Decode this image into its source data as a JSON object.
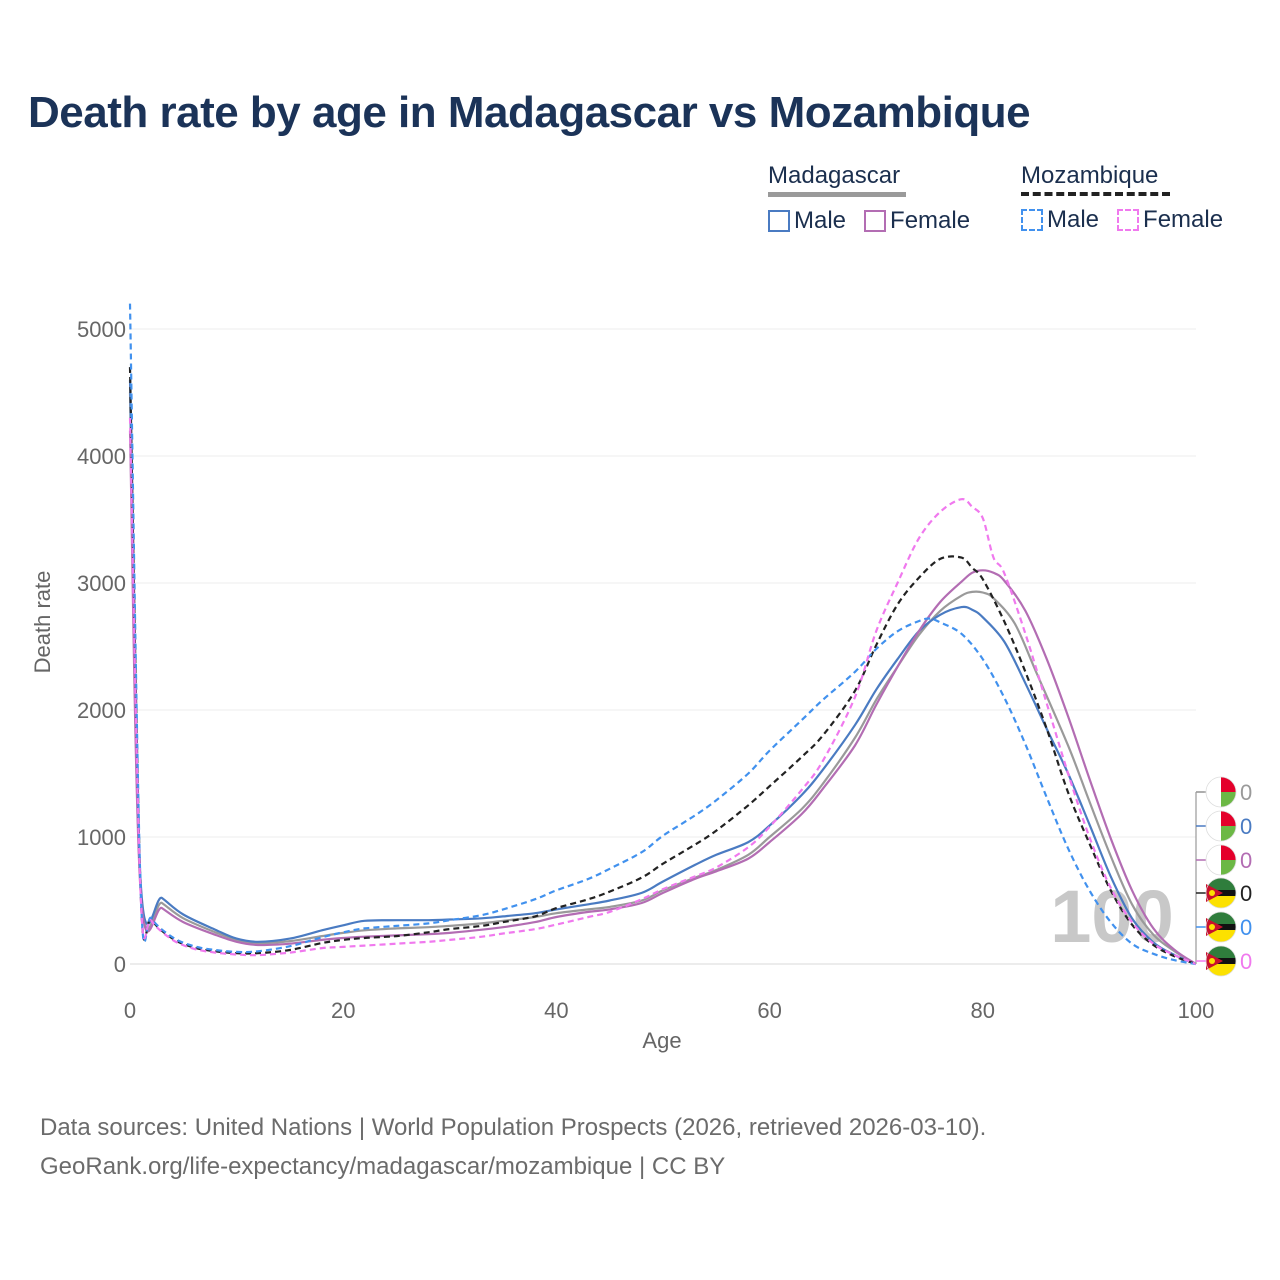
{
  "header": {
    "title": "Death rate by age in Madagascar vs Mozambique"
  },
  "legend": {
    "groups": [
      {
        "name": "Madagascar",
        "line_color": "#9a9a9a",
        "items": [
          {
            "label": "Male",
            "color": "#4a7bc2"
          },
          {
            "label": "Female",
            "color": "#b36db3"
          }
        ]
      },
      {
        "name": "Mozambique",
        "line_color": "#222222",
        "items": [
          {
            "label": "Male",
            "color": "#4191ee"
          },
          {
            "label": "Female",
            "color": "#f079ee"
          }
        ]
      }
    ]
  },
  "chart_data": {
    "type": "line",
    "title": "Death rate by age in Madagascar vs Mozambique",
    "xlabel": "Age",
    "ylabel": "Death rate",
    "xlim": [
      0,
      100
    ],
    "ylim": [
      0,
      5150
    ],
    "xticks": [
      0,
      20,
      40,
      60,
      80,
      100
    ],
    "yticks": [
      0,
      1000,
      2000,
      3000,
      4000,
      5000
    ],
    "watermark": "100",
    "series": [
      {
        "name": "Madagascar (both)",
        "country": "Madagascar",
        "sex": "Both",
        "color": "#9a9a9a",
        "dashed": false,
        "end_label": "0",
        "points": [
          [
            0,
            4500
          ],
          [
            1,
            600
          ],
          [
            3,
            480
          ],
          [
            5,
            360
          ],
          [
            8,
            250
          ],
          [
            10,
            190
          ],
          [
            12,
            165
          ],
          [
            15,
            180
          ],
          [
            18,
            220
          ],
          [
            20,
            245
          ],
          [
            22,
            265
          ],
          [
            25,
            280
          ],
          [
            28,
            290
          ],
          [
            30,
            300
          ],
          [
            33,
            320
          ],
          [
            35,
            340
          ],
          [
            38,
            370
          ],
          [
            40,
            400
          ],
          [
            43,
            430
          ],
          [
            45,
            450
          ],
          [
            48,
            500
          ],
          [
            50,
            580
          ],
          [
            53,
            680
          ],
          [
            55,
            740
          ],
          [
            58,
            860
          ],
          [
            60,
            1000
          ],
          [
            63,
            1220
          ],
          [
            65,
            1420
          ],
          [
            68,
            1780
          ],
          [
            70,
            2080
          ],
          [
            72,
            2340
          ],
          [
            74,
            2590
          ],
          [
            76,
            2780
          ],
          [
            78,
            2900
          ],
          [
            79,
            2930
          ],
          [
            80,
            2925
          ],
          [
            81,
            2880
          ],
          [
            83,
            2680
          ],
          [
            85,
            2300
          ],
          [
            88,
            1720
          ],
          [
            90,
            1280
          ],
          [
            92,
            850
          ],
          [
            94,
            470
          ],
          [
            96,
            230
          ],
          [
            98,
            100
          ],
          [
            100,
            0
          ]
        ]
      },
      {
        "name": "Madagascar Male",
        "country": "Madagascar",
        "sex": "Male",
        "color": "#4a7bc2",
        "dashed": false,
        "end_label": "0",
        "points": [
          [
            0,
            4600
          ],
          [
            1,
            640
          ],
          [
            3,
            520
          ],
          [
            5,
            390
          ],
          [
            8,
            270
          ],
          [
            10,
            200
          ],
          [
            12,
            175
          ],
          [
            15,
            200
          ],
          [
            18,
            265
          ],
          [
            20,
            305
          ],
          [
            22,
            340
          ],
          [
            25,
            345
          ],
          [
            28,
            345
          ],
          [
            30,
            350
          ],
          [
            33,
            360
          ],
          [
            35,
            375
          ],
          [
            38,
            400
          ],
          [
            40,
            430
          ],
          [
            43,
            470
          ],
          [
            45,
            500
          ],
          [
            48,
            560
          ],
          [
            50,
            650
          ],
          [
            53,
            780
          ],
          [
            55,
            860
          ],
          [
            58,
            960
          ],
          [
            60,
            1090
          ],
          [
            63,
            1330
          ],
          [
            65,
            1530
          ],
          [
            68,
            1880
          ],
          [
            70,
            2160
          ],
          [
            72,
            2400
          ],
          [
            74,
            2620
          ],
          [
            76,
            2750
          ],
          [
            78,
            2810
          ],
          [
            79,
            2790
          ],
          [
            80,
            2730
          ],
          [
            82,
            2540
          ],
          [
            84,
            2210
          ],
          [
            86,
            1850
          ],
          [
            88,
            1500
          ],
          [
            90,
            1100
          ],
          [
            92,
            690
          ],
          [
            94,
            360
          ],
          [
            96,
            170
          ],
          [
            98,
            70
          ],
          [
            100,
            0
          ]
        ]
      },
      {
        "name": "Madagascar Female",
        "country": "Madagascar",
        "sex": "Female",
        "color": "#b36db3",
        "dashed": false,
        "end_label": "0",
        "points": [
          [
            0,
            4200
          ],
          [
            1,
            560
          ],
          [
            3,
            440
          ],
          [
            5,
            330
          ],
          [
            8,
            230
          ],
          [
            10,
            175
          ],
          [
            12,
            150
          ],
          [
            15,
            160
          ],
          [
            18,
            190
          ],
          [
            20,
            205
          ],
          [
            22,
            215
          ],
          [
            25,
            225
          ],
          [
            28,
            235
          ],
          [
            30,
            245
          ],
          [
            33,
            270
          ],
          [
            35,
            290
          ],
          [
            38,
            330
          ],
          [
            40,
            370
          ],
          [
            43,
            410
          ],
          [
            45,
            430
          ],
          [
            48,
            480
          ],
          [
            50,
            560
          ],
          [
            53,
            670
          ],
          [
            55,
            730
          ],
          [
            58,
            830
          ],
          [
            60,
            960
          ],
          [
            63,
            1180
          ],
          [
            65,
            1380
          ],
          [
            68,
            1720
          ],
          [
            70,
            2040
          ],
          [
            72,
            2340
          ],
          [
            74,
            2620
          ],
          [
            76,
            2850
          ],
          [
            78,
            3010
          ],
          [
            79,
            3080
          ],
          [
            80,
            3100
          ],
          [
            81,
            3080
          ],
          [
            82,
            3020
          ],
          [
            84,
            2780
          ],
          [
            86,
            2400
          ],
          [
            88,
            1950
          ],
          [
            90,
            1460
          ],
          [
            92,
            990
          ],
          [
            94,
            580
          ],
          [
            96,
            280
          ],
          [
            98,
            110
          ],
          [
            100,
            0
          ]
        ]
      },
      {
        "name": "Mozambique (both)",
        "country": "Mozambique",
        "sex": "Both",
        "color": "#222222",
        "dashed": true,
        "end_label": "0",
        "points": [
          [
            0,
            4700
          ],
          [
            1,
            560
          ],
          [
            2,
            350
          ],
          [
            4,
            200
          ],
          [
            6,
            130
          ],
          [
            8,
            100
          ],
          [
            10,
            85
          ],
          [
            12,
            85
          ],
          [
            15,
            110
          ],
          [
            18,
            165
          ],
          [
            20,
            190
          ],
          [
            22,
            205
          ],
          [
            25,
            220
          ],
          [
            28,
            250
          ],
          [
            30,
            275
          ],
          [
            33,
            300
          ],
          [
            35,
            330
          ],
          [
            38,
            375
          ],
          [
            40,
            440
          ],
          [
            43,
            510
          ],
          [
            45,
            570
          ],
          [
            48,
            680
          ],
          [
            50,
            790
          ],
          [
            53,
            940
          ],
          [
            55,
            1050
          ],
          [
            58,
            1250
          ],
          [
            60,
            1400
          ],
          [
            63,
            1630
          ],
          [
            65,
            1800
          ],
          [
            68,
            2150
          ],
          [
            70,
            2510
          ],
          [
            72,
            2830
          ],
          [
            74,
            3040
          ],
          [
            76,
            3190
          ],
          [
            78,
            3200
          ],
          [
            79,
            3120
          ],
          [
            80,
            3030
          ],
          [
            82,
            2700
          ],
          [
            84,
            2300
          ],
          [
            86,
            1850
          ],
          [
            88,
            1350
          ],
          [
            90,
            950
          ],
          [
            92,
            580
          ],
          [
            94,
            310
          ],
          [
            96,
            150
          ],
          [
            98,
            60
          ],
          [
            100,
            0
          ]
        ]
      },
      {
        "name": "Mozambique Male",
        "country": "Mozambique",
        "sex": "Male",
        "color": "#4191ee",
        "dashed": true,
        "end_label": "0",
        "points": [
          [
            0,
            5200
          ],
          [
            1,
            580
          ],
          [
            2,
            360
          ],
          [
            4,
            210
          ],
          [
            6,
            140
          ],
          [
            8,
            110
          ],
          [
            10,
            95
          ],
          [
            12,
            100
          ],
          [
            15,
            140
          ],
          [
            18,
            210
          ],
          [
            20,
            250
          ],
          [
            22,
            280
          ],
          [
            25,
            300
          ],
          [
            28,
            320
          ],
          [
            30,
            345
          ],
          [
            33,
            385
          ],
          [
            35,
            430
          ],
          [
            38,
            510
          ],
          [
            40,
            580
          ],
          [
            43,
            670
          ],
          [
            45,
            750
          ],
          [
            48,
            880
          ],
          [
            50,
            1010
          ],
          [
            53,
            1170
          ],
          [
            55,
            1290
          ],
          [
            58,
            1500
          ],
          [
            60,
            1680
          ],
          [
            63,
            1920
          ],
          [
            65,
            2080
          ],
          [
            68,
            2300
          ],
          [
            70,
            2480
          ],
          [
            72,
            2620
          ],
          [
            74,
            2700
          ],
          [
            75,
            2720
          ],
          [
            76,
            2690
          ],
          [
            78,
            2600
          ],
          [
            80,
            2400
          ],
          [
            82,
            2100
          ],
          [
            84,
            1730
          ],
          [
            86,
            1310
          ],
          [
            88,
            910
          ],
          [
            90,
            580
          ],
          [
            92,
            330
          ],
          [
            94,
            160
          ],
          [
            96,
            80
          ],
          [
            98,
            30
          ],
          [
            100,
            0
          ]
        ]
      },
      {
        "name": "Mozambique Female",
        "country": "Mozambique",
        "sex": "Female",
        "color": "#f079ee",
        "dashed": true,
        "end_label": "0",
        "points": [
          [
            0,
            4300
          ],
          [
            1,
            540
          ],
          [
            2,
            340
          ],
          [
            4,
            190
          ],
          [
            6,
            120
          ],
          [
            8,
            90
          ],
          [
            10,
            75
          ],
          [
            12,
            70
          ],
          [
            15,
            90
          ],
          [
            18,
            125
          ],
          [
            20,
            135
          ],
          [
            22,
            145
          ],
          [
            25,
            160
          ],
          [
            28,
            175
          ],
          [
            30,
            190
          ],
          [
            33,
            215
          ],
          [
            35,
            240
          ],
          [
            38,
            275
          ],
          [
            40,
            310
          ],
          [
            43,
            370
          ],
          [
            45,
            410
          ],
          [
            48,
            510
          ],
          [
            50,
            590
          ],
          [
            53,
            690
          ],
          [
            55,
            760
          ],
          [
            58,
            920
          ],
          [
            60,
            1080
          ],
          [
            63,
            1370
          ],
          [
            65,
            1600
          ],
          [
            68,
            2100
          ],
          [
            70,
            2620
          ],
          [
            72,
            3000
          ],
          [
            74,
            3350
          ],
          [
            76,
            3560
          ],
          [
            78,
            3660
          ],
          [
            79,
            3600
          ],
          [
            80,
            3510
          ],
          [
            81,
            3200
          ],
          [
            82,
            3080
          ],
          [
            84,
            2600
          ],
          [
            86,
            2050
          ],
          [
            88,
            1500
          ],
          [
            90,
            1000
          ],
          [
            92,
            600
          ],
          [
            94,
            330
          ],
          [
            96,
            160
          ],
          [
            98,
            70
          ],
          [
            100,
            0
          ]
        ]
      }
    ]
  },
  "footer": {
    "line1": "Data sources: United Nations | World Population Prospects (2026, retrieved 2026-03-10).",
    "line2": "GeoRank.org/life-expectancy/madagascar/mozambique | CC BY"
  }
}
